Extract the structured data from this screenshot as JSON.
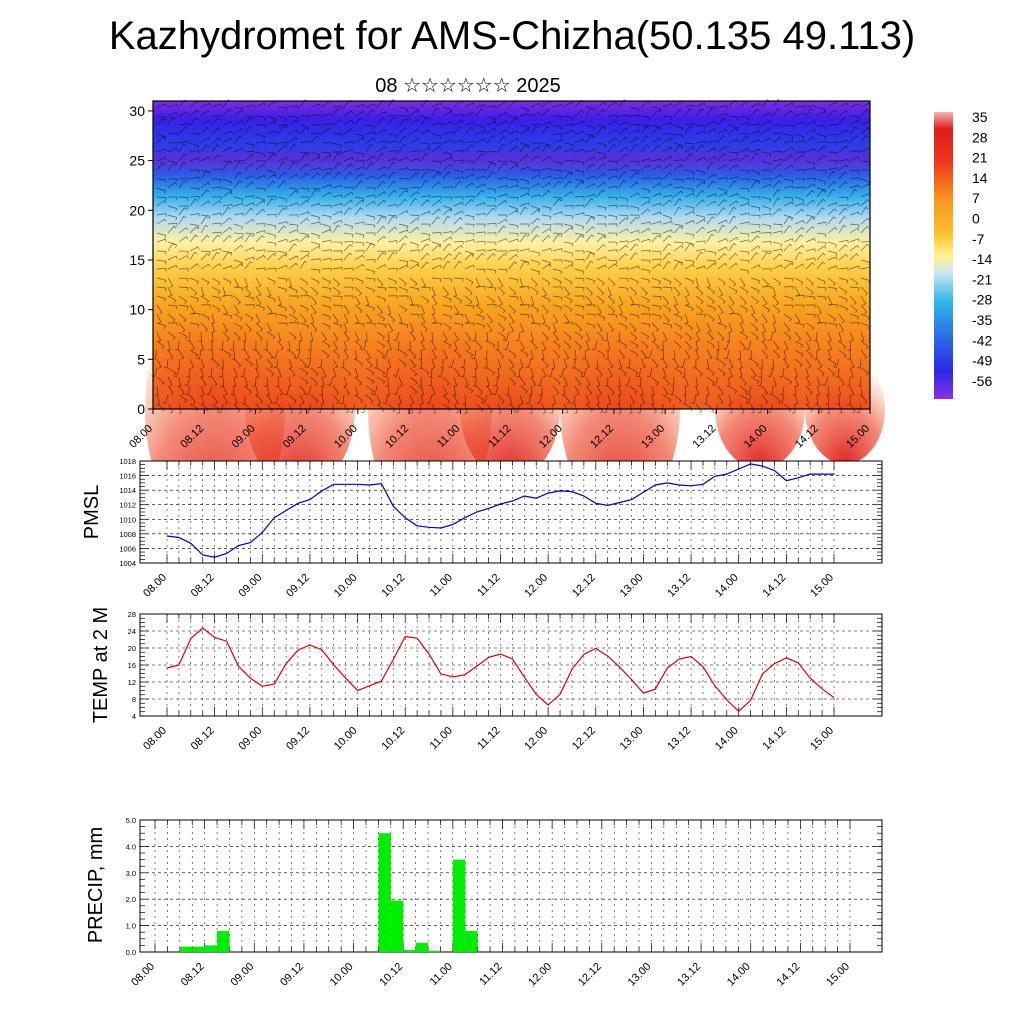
{
  "page": {
    "title": "Kazhydromet for AMS-Chizha(50.135 49.113)",
    "subtitle": "08 ☆☆☆☆☆☆ 2025"
  },
  "chart_data": [
    {
      "type": "heatmap",
      "name": "upper-air cross section",
      "xlabel": "",
      "ylabel": "",
      "x_tick_labels": [
        "08.00",
        "08.12",
        "09.00",
        "09.12",
        "10.00",
        "10.12",
        "11.00",
        "11.12",
        "12.00",
        "12.12",
        "13.00",
        "13.12",
        "14.00",
        "14.12",
        "15.00"
      ],
      "y_ticks": [
        0,
        5,
        10,
        15,
        20,
        25,
        30
      ],
      "ylim": [
        0,
        31
      ],
      "colorbar_labels": [
        "35",
        "28",
        "21",
        "14",
        "7",
        "0",
        "-7",
        "-14",
        "-21",
        "-28",
        "-35",
        "-42",
        "-49",
        "-56"
      ],
      "colorscale": [
        "#f7b6b6",
        "#e11c1c",
        "#f25a1e",
        "#f7941d",
        "#fbc02d",
        "#fff38a",
        "#a9d8f0",
        "#2fb6e8",
        "#2a70e6",
        "#2d2ae6",
        "#8a30e6"
      ],
      "wind_barbs": true
    },
    {
      "type": "line",
      "ylabel": "PMSL",
      "x_tick_labels": [
        "08.00",
        "08.12",
        "09.00",
        "09.12",
        "10.00",
        "10.12",
        "11.00",
        "11.12",
        "12.00",
        "12.12",
        "13.00",
        "13.12",
        "14.00",
        "14.12",
        "15.00"
      ],
      "y_tick_labels": [
        "1004",
        "1006",
        "1008",
        "1010",
        "1012",
        "1014",
        "1016",
        "1018"
      ],
      "ylim": [
        1004,
        1018
      ],
      "color": "#0000cc",
      "series": [
        {
          "x": [
            0,
            3,
            6,
            9,
            12,
            15,
            18,
            21,
            24,
            27,
            30,
            33,
            36,
            39,
            42,
            45,
            48,
            51,
            54,
            57,
            60,
            63,
            66,
            69,
            72,
            75,
            78,
            81,
            84,
            87,
            90,
            93,
            96,
            99,
            102,
            105,
            108,
            111,
            114,
            117,
            120,
            123,
            126,
            129,
            132,
            135,
            138,
            141,
            144,
            147,
            150,
            153,
            156,
            159,
            162,
            165,
            168
          ],
          "values": [
            1007.7,
            1007.5,
            1006.7,
            1005.1,
            1004.8,
            1005.3,
            1006.4,
            1006.8,
            1008.2,
            1010.2,
            1011.2,
            1012.2,
            1012.7,
            1013.9,
            1014.8,
            1014.8,
            1014.8,
            1014.7,
            1014.9,
            1011.8,
            1010.2,
            1009.1,
            1008.9,
            1008.8,
            1009.3,
            1010.2,
            1011.0,
            1011.5,
            1012.1,
            1012.5,
            1013.2,
            1012.9,
            1013.6,
            1013.9,
            1013.8,
            1013.2,
            1012.2,
            1011.9,
            1012.3,
            1012.7,
            1013.7,
            1014.7,
            1015.0,
            1014.7,
            1014.6,
            1014.8,
            1015.9,
            1016.2,
            1016.9,
            1017.6,
            1017.3,
            1016.7,
            1015.3,
            1015.7,
            1016.2,
            1016.2,
            1016.2
          ]
        }
      ]
    },
    {
      "type": "line",
      "ylabel": "TEMP at 2 M",
      "x_tick_labels": [
        "08.00",
        "08.12",
        "09.00",
        "09.12",
        "10.00",
        "10.12",
        "11.00",
        "11.12",
        "12.00",
        "12.12",
        "13.00",
        "13.12",
        "14.00",
        "14.12",
        "15.00"
      ],
      "y_tick_labels": [
        "4",
        "8",
        "12",
        "16",
        "20",
        "24",
        "28"
      ],
      "ylim": [
        4,
        28
      ],
      "color": "#e60000",
      "series": [
        {
          "x": [
            0,
            3,
            6,
            9,
            12,
            15,
            18,
            21,
            24,
            27,
            30,
            33,
            36,
            39,
            42,
            45,
            48,
            51,
            54,
            57,
            60,
            63,
            66,
            69,
            72,
            75,
            78,
            81,
            84,
            87,
            90,
            93,
            96,
            99,
            102,
            105,
            108,
            111,
            114,
            117,
            120,
            123,
            126,
            129,
            132,
            135,
            138,
            141,
            144,
            147,
            150,
            153,
            156,
            159,
            162,
            165,
            168
          ],
          "values": [
            15.3,
            16.0,
            22.2,
            24.7,
            22.5,
            21.6,
            15.7,
            12.9,
            11.0,
            11.5,
            16.3,
            19.5,
            20.7,
            19.6,
            16.0,
            12.9,
            10.0,
            11.1,
            12.2,
            17.3,
            22.7,
            22.3,
            18.6,
            13.9,
            13.2,
            13.7,
            15.7,
            17.8,
            18.6,
            17.4,
            13.2,
            9.1,
            6.6,
            9.1,
            15.0,
            18.5,
            19.9,
            18.1,
            15.5,
            12.6,
            9.4,
            10.3,
            15.3,
            17.4,
            18.0,
            15.6,
            11.1,
            7.8,
            5.1,
            7.7,
            13.9,
            16.3,
            17.7,
            16.5,
            12.9,
            10.4,
            8.3
          ]
        }
      ]
    },
    {
      "type": "bar",
      "ylabel": "PRECIP, mm",
      "x_tick_labels": [
        "08.00",
        "08.12",
        "09.00",
        "09.12",
        "10.00",
        "10.12",
        "11.00",
        "11.12",
        "12.00",
        "12.12",
        "13.00",
        "13.12",
        "14.00",
        "14.12",
        "15.00"
      ],
      "y_tick_labels": [
        "0.0",
        "1.0",
        "2.0",
        "3.0",
        "4.0",
        "5.0"
      ],
      "ylim": [
        0,
        5
      ],
      "color": "#00ee00",
      "series": [
        {
          "x": [
            6,
            9,
            12,
            15,
            54,
            57,
            60,
            63,
            66,
            69,
            72,
            75
          ],
          "values": [
            0.2,
            0.2,
            0.25,
            0.8,
            4.5,
            1.95,
            0.08,
            0.35,
            0.05,
            0.0,
            3.5,
            0.8
          ]
        }
      ]
    }
  ]
}
